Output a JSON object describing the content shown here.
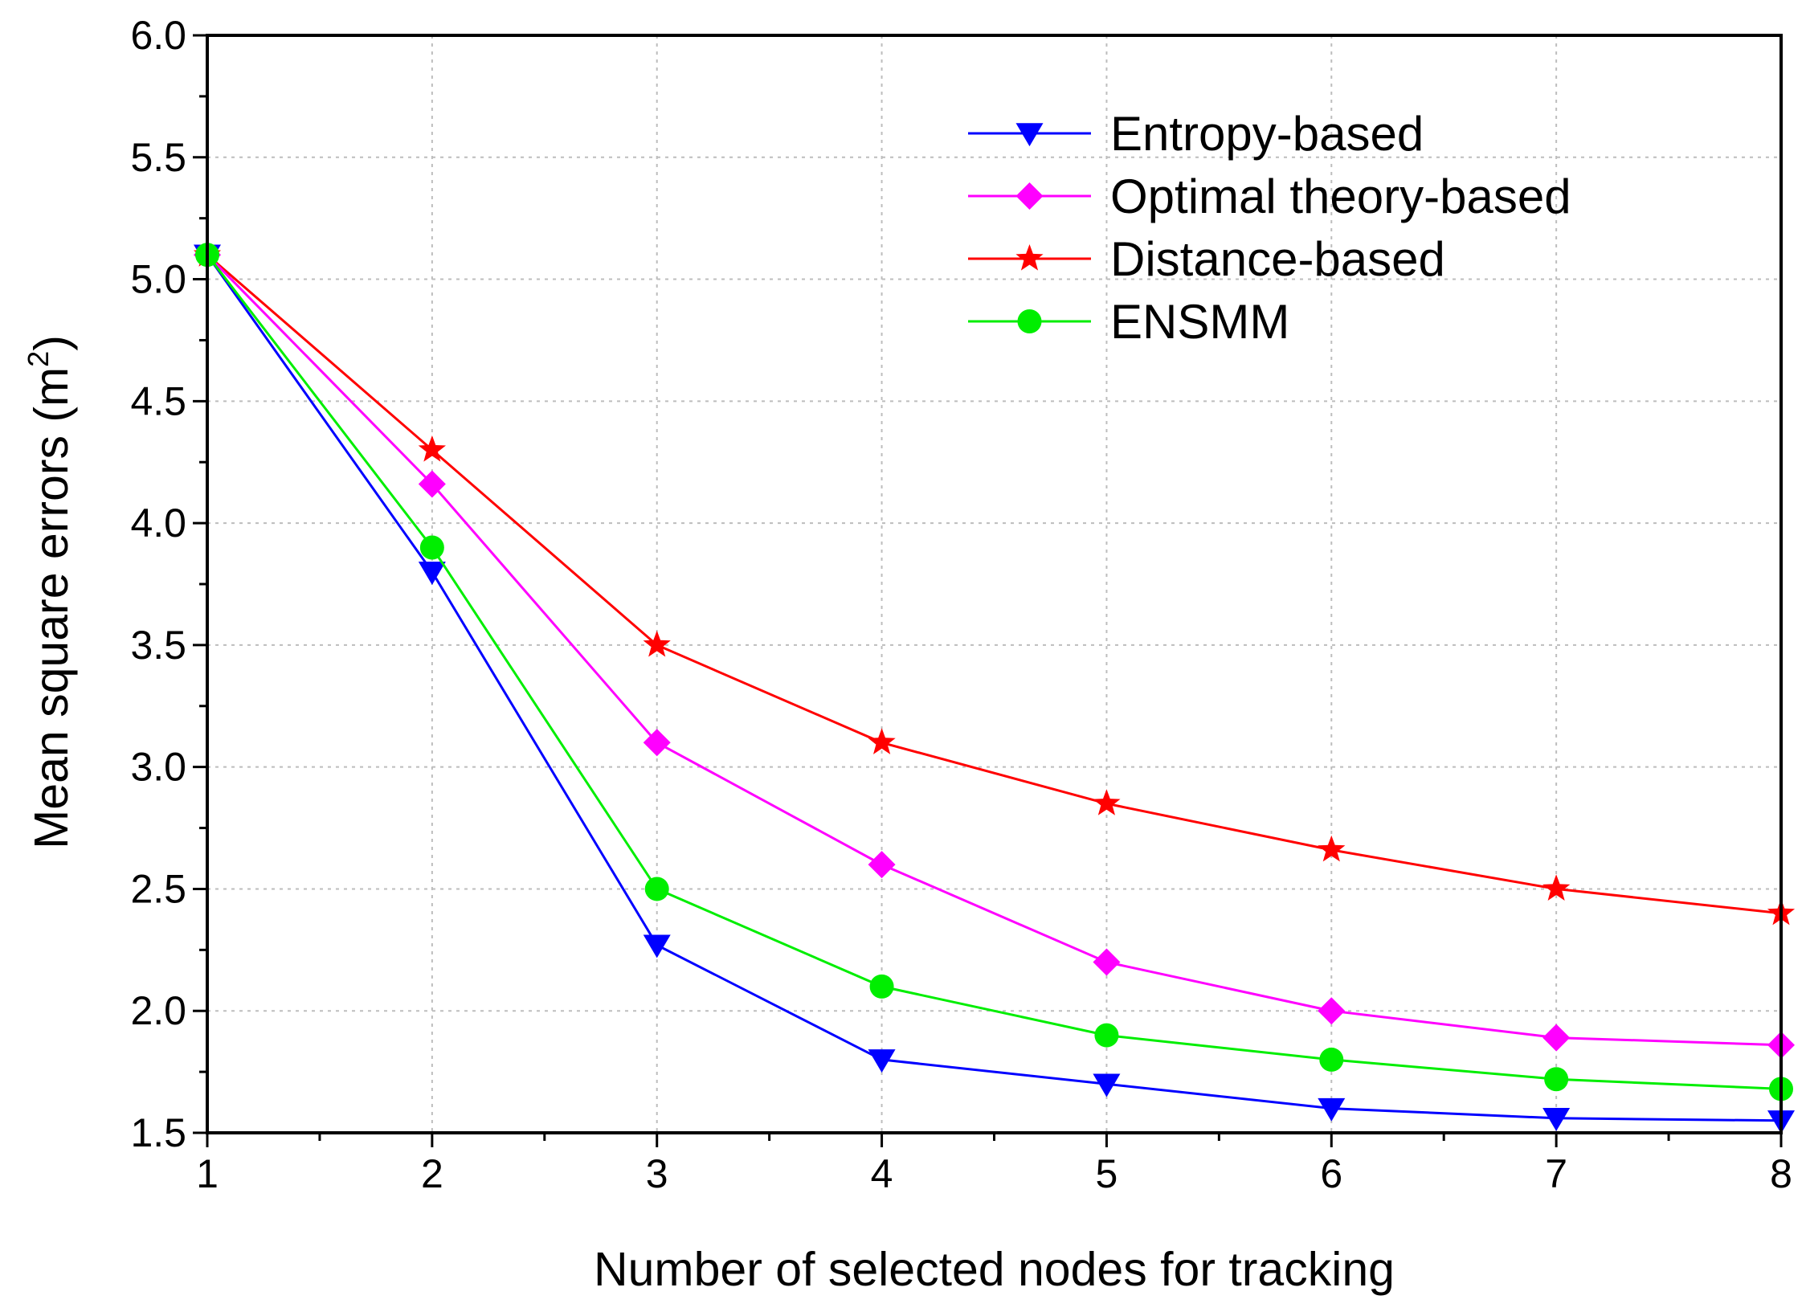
{
  "chart_data": {
    "type": "line",
    "title": "",
    "xlabel": "Number of selected nodes for tracking",
    "ylabel": "Mean square errors (m",
    "ylabel_superscript": "2",
    "ylabel_suffix": ")",
    "x": [
      1,
      2,
      3,
      4,
      5,
      6,
      7,
      8
    ],
    "xlim": [
      1,
      8
    ],
    "ylim": [
      1.5,
      6.0
    ],
    "x_tick_labels": [
      "1",
      "2",
      "3",
      "4",
      "5",
      "6",
      "7",
      "8"
    ],
    "y_ticks": [
      1.5,
      2.0,
      2.5,
      3.0,
      3.5,
      4.0,
      4.5,
      5.0,
      5.5,
      6.0
    ],
    "y_tick_labels": [
      "1.5",
      "2.0",
      "2.5",
      "3.0",
      "3.5",
      "4.0",
      "4.5",
      "5.0",
      "5.5",
      "6.0"
    ],
    "grid": true,
    "legend_position": "top-right",
    "series": [
      {
        "name": "Entropy-based",
        "color": "#0000ff",
        "marker": "triangle-down",
        "values": [
          5.1,
          3.8,
          2.27,
          1.8,
          1.7,
          1.6,
          1.56,
          1.55
        ]
      },
      {
        "name": "Optimal theory-based",
        "color": "#ff00ff",
        "marker": "diamond",
        "values": [
          5.1,
          4.16,
          3.1,
          2.6,
          2.2,
          2.0,
          1.89,
          1.86
        ]
      },
      {
        "name": "Distance-based",
        "color": "#ff0000",
        "marker": "star",
        "values": [
          5.1,
          4.3,
          3.5,
          3.1,
          2.85,
          2.66,
          2.5,
          2.4
        ]
      },
      {
        "name": "ENSMM",
        "color": "#00ee00",
        "marker": "circle",
        "values": [
          5.1,
          3.9,
          2.5,
          2.1,
          1.9,
          1.8,
          1.72,
          1.68
        ]
      }
    ]
  }
}
